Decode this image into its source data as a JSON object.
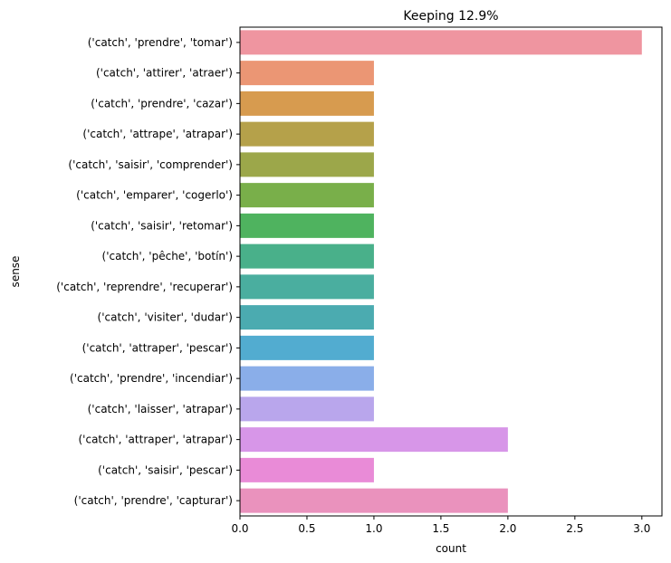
{
  "chart_data": {
    "type": "bar",
    "orientation": "horizontal",
    "title": "Keeping 12.9%",
    "xlabel": "count",
    "ylabel": "sense",
    "xlim": [
      0,
      3.15
    ],
    "xticks": [
      "0.0",
      "0.5",
      "1.0",
      "1.5",
      "2.0",
      "2.5",
      "3.0"
    ],
    "xtick_values": [
      0,
      0.5,
      1.0,
      1.5,
      2.0,
      2.5,
      3.0
    ],
    "grid": false,
    "categories": [
      "('catch', 'prendre', 'tomar')",
      "('catch', 'attirer', 'atraer')",
      "('catch', 'prendre', 'cazar')",
      "('catch', 'attrape', 'atrapar')",
      "('catch', 'saisir', 'comprender')",
      "('catch', 'emparer', 'cogerlo')",
      "('catch', 'saisir', 'retomar')",
      "('catch', 'pêche', 'botín')",
      "('catch', 'reprendre', 'recuperar')",
      "('catch', 'visiter', 'dudar')",
      "('catch', 'attraper', 'pescar')",
      "('catch', 'prendre', 'incendiar')",
      "('catch', 'laisser', 'atrapar')",
      "('catch', 'attraper', 'atrapar')",
      "('catch', 'saisir', 'pescar')",
      "('catch', 'prendre', 'capturar')"
    ],
    "values": [
      3,
      1,
      1,
      1,
      1,
      1,
      1,
      1,
      1,
      1,
      1,
      1,
      1,
      2,
      1,
      2
    ],
    "colors": [
      "#ef95a0",
      "#eb9674",
      "#d79b4f",
      "#b5a14a",
      "#9ca74a",
      "#79af4a",
      "#4fb35f",
      "#49b08a",
      "#4aae9f",
      "#4bab b0",
      "#52acd0",
      "#8aaee9",
      "#b9a6ec",
      "#d796e8",
      "#e98bd7",
      "#ea92bd"
    ]
  }
}
